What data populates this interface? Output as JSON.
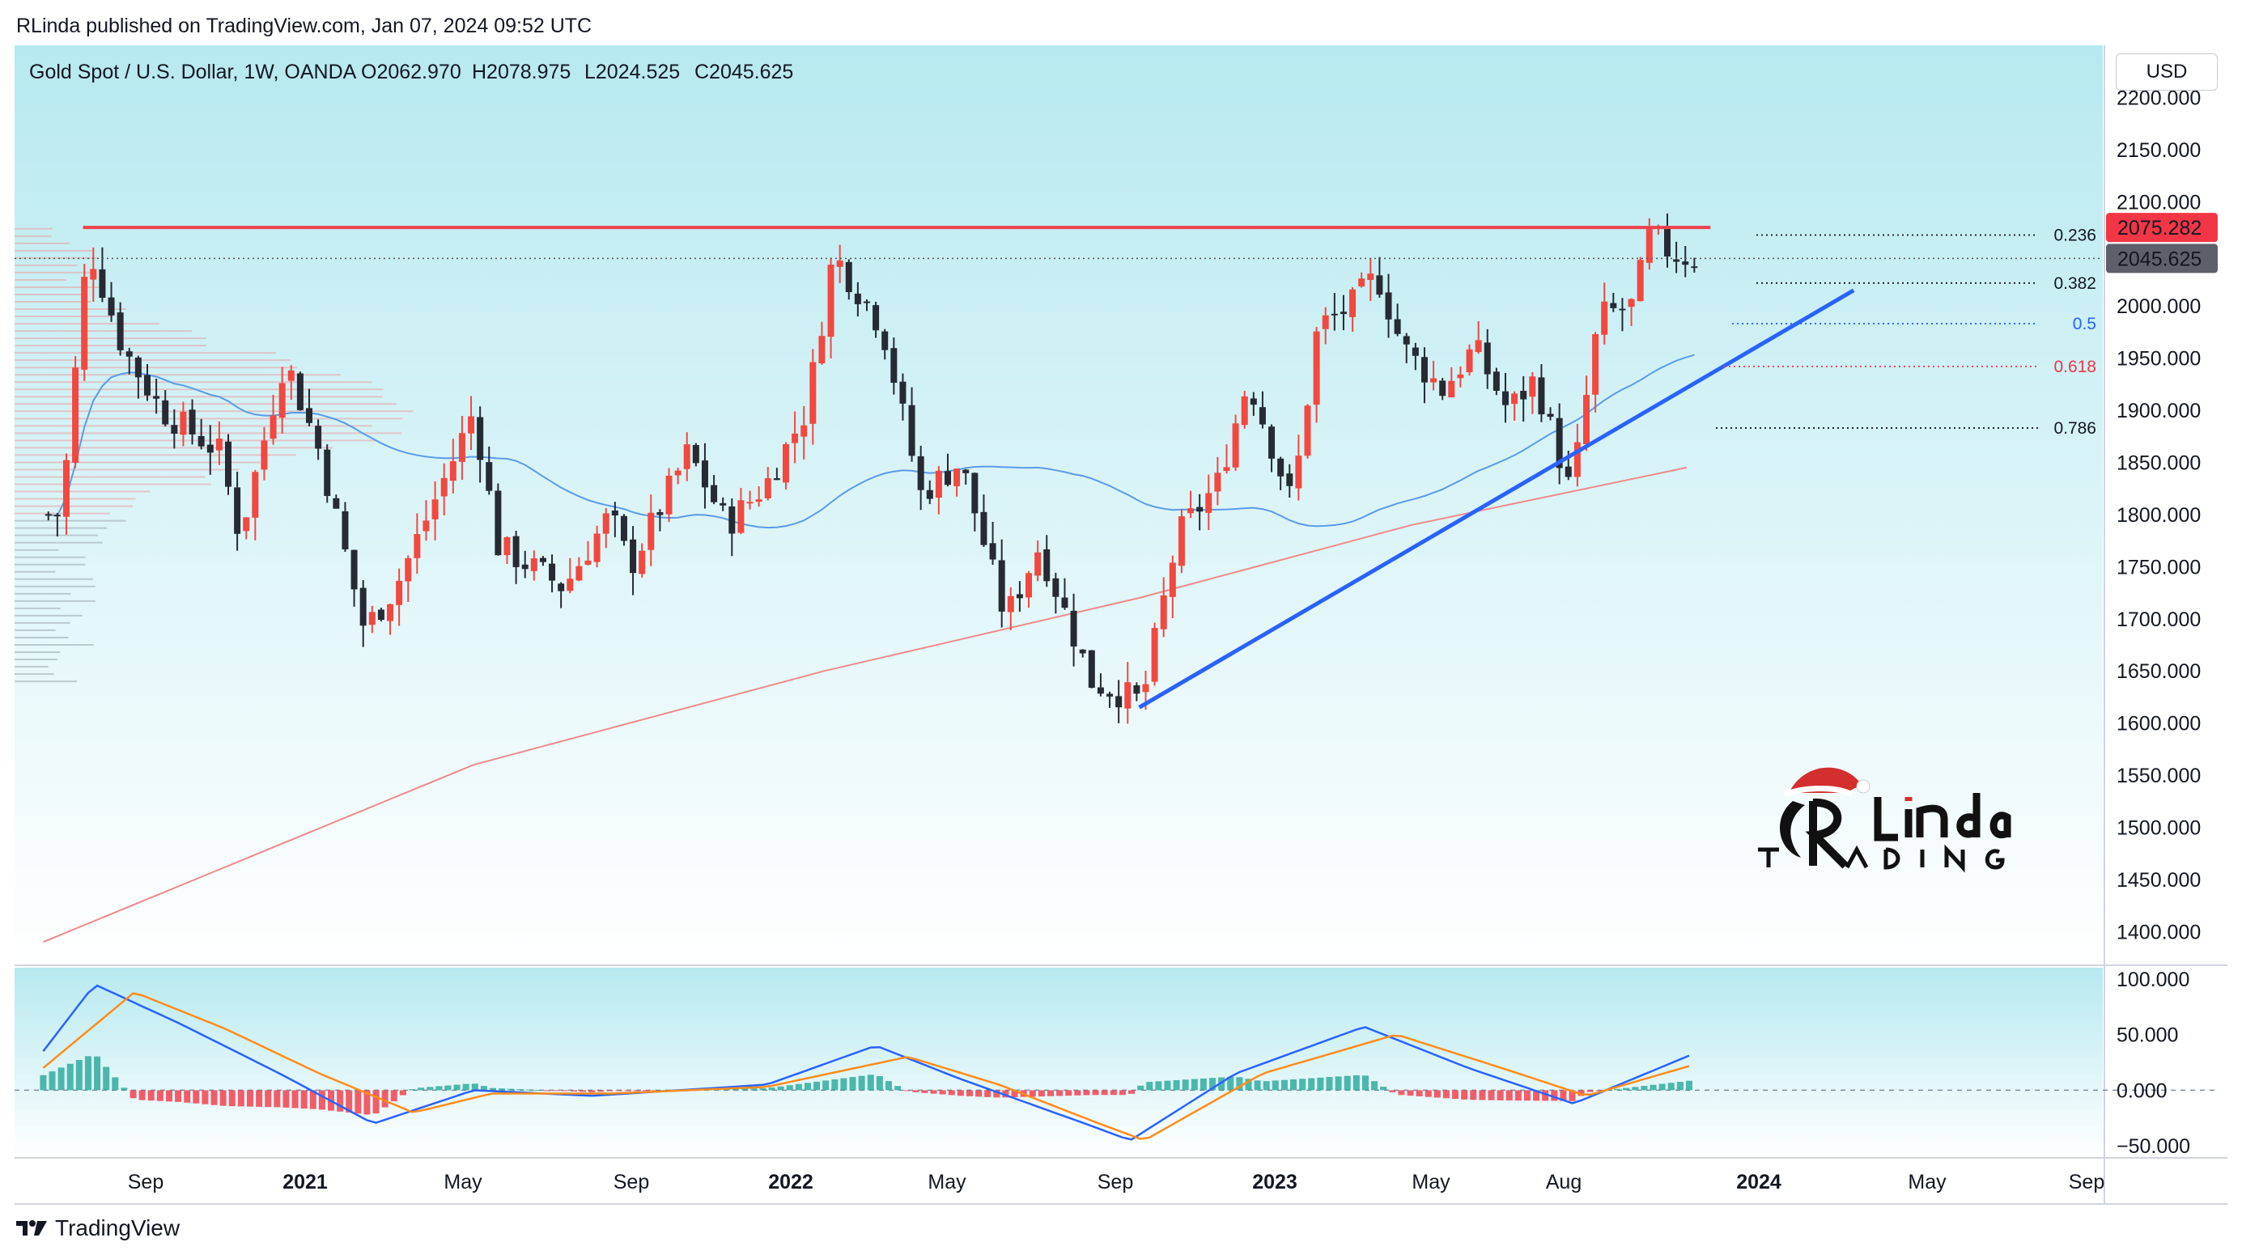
{
  "publisher": "RLinda published on TradingView.com, Jan 07, 2024 09:52 UTC",
  "footer_brand": "TradingView",
  "currency_button": "USD",
  "colors": {
    "background_top": "#b6e9f0",
    "background_bottom": "#ffffff",
    "up": "#f2483f",
    "down": "#262a33",
    "resistance": "#f0404d",
    "trendline": "#2962ff",
    "ma_fast": "#5a9be8",
    "ma_slow": "#ee8a8a",
    "macd": "#2962ff",
    "signal": "#ff8c1a",
    "hist_pos": "#26a69a",
    "hist_neg": "#f23645"
  },
  "chart_data": [
    {
      "type": "candlestick",
      "title": "Gold Spot / U.S. Dollar, 1W, OANDA",
      "ohlc_label": {
        "o": "O2062.970",
        "h": "H2078.975",
        "l": "L2024.525",
        "c": "C2045.625"
      },
      "x_tick_labels": [
        "Sep",
        "2021",
        "May",
        "Sep",
        "2022",
        "May",
        "Sep",
        "2023",
        "May",
        "Aug",
        "2024",
        "May",
        "Sep"
      ],
      "y_tick_labels": [
        "2200.000",
        "2150.000",
        "2100.000",
        "2000.000",
        "1950.000",
        "1900.000",
        "1850.000",
        "1800.000",
        "1750.000",
        "1700.000",
        "1650.000",
        "1600.000",
        "1550.000",
        "1500.000",
        "1450.000",
        "1400.000"
      ],
      "ylim": [
        1370,
        2250
      ],
      "price_tags": [
        {
          "value": 2075.282,
          "label": "2075.282",
          "color": "#f23645"
        },
        {
          "value": 2045.625,
          "label": "2045.625",
          "color": "#5d606b"
        }
      ],
      "resistance": {
        "value": 2075.282,
        "from": "2020-08-01",
        "to": "2024-01-07"
      },
      "trendline": {
        "from": {
          "date": "2022-11-01",
          "value": 1615
        },
        "to": {
          "date": "2024-05-10",
          "value": 2015
        }
      },
      "fib_levels": [
        {
          "label": "0.236",
          "value": 2068
        },
        {
          "label": "0.382",
          "value": 2022
        },
        {
          "label": "0.5",
          "value": 1983
        },
        {
          "label": "0.618",
          "value": 1942
        },
        {
          "label": "0.786",
          "value": 1883
        }
      ],
      "key_prices": [
        {
          "date": "2020-07-15",
          "close": 1800
        },
        {
          "date": "2020-08-05",
          "close": 2060
        },
        {
          "date": "2020-09-01",
          "close": 1960
        },
        {
          "date": "2020-10-01",
          "close": 1900
        },
        {
          "date": "2020-11-15",
          "close": 1860
        },
        {
          "date": "2020-12-01",
          "close": 1780
        },
        {
          "date": "2021-01-05",
          "close": 1950
        },
        {
          "date": "2021-02-01",
          "close": 1860
        },
        {
          "date": "2021-03-08",
          "close": 1690
        },
        {
          "date": "2021-04-01",
          "close": 1730
        },
        {
          "date": "2021-05-15",
          "close": 1850
        },
        {
          "date": "2021-06-01",
          "close": 1900
        },
        {
          "date": "2021-06-20",
          "close": 1770
        },
        {
          "date": "2021-08-10",
          "close": 1730
        },
        {
          "date": "2021-09-15",
          "close": 1800
        },
        {
          "date": "2021-10-01",
          "close": 1750
        },
        {
          "date": "2021-11-15",
          "close": 1860
        },
        {
          "date": "2021-12-15",
          "close": 1790
        },
        {
          "date": "2022-01-15",
          "close": 1830
        },
        {
          "date": "2022-02-15",
          "close": 1900
        },
        {
          "date": "2022-03-08",
          "close": 2050
        },
        {
          "date": "2022-04-15",
          "close": 1980
        },
        {
          "date": "2022-05-15",
          "close": 1820
        },
        {
          "date": "2022-06-15",
          "close": 1850
        },
        {
          "date": "2022-07-20",
          "close": 1700
        },
        {
          "date": "2022-08-15",
          "close": 1770
        },
        {
          "date": "2022-09-25",
          "close": 1640
        },
        {
          "date": "2022-11-03",
          "close": 1620
        },
        {
          "date": "2022-12-01",
          "close": 1780
        },
        {
          "date": "2023-01-01",
          "close": 1830
        },
        {
          "date": "2023-01-25",
          "close": 1930
        },
        {
          "date": "2023-02-28",
          "close": 1810
        },
        {
          "date": "2023-03-20",
          "close": 1980
        },
        {
          "date": "2023-04-15",
          "close": 2000
        },
        {
          "date": "2023-05-05",
          "close": 2030
        },
        {
          "date": "2023-05-25",
          "close": 1960
        },
        {
          "date": "2023-06-25",
          "close": 1920
        },
        {
          "date": "2023-07-20",
          "close": 1960
        },
        {
          "date": "2023-08-15",
          "close": 1900
        },
        {
          "date": "2023-09-05",
          "close": 1930
        },
        {
          "date": "2023-10-03",
          "close": 1820
        },
        {
          "date": "2023-10-25",
          "close": 1990
        },
        {
          "date": "2023-11-20",
          "close": 2000
        },
        {
          "date": "2023-12-04",
          "close": 2070
        },
        {
          "date": "2023-12-20",
          "close": 2050
        },
        {
          "date": "2024-01-07",
          "close": 2045.625
        }
      ]
    },
    {
      "type": "line",
      "title": "MACD",
      "y_tick_labels": [
        "100.000",
        "50.000",
        "0.000",
        "−50.000"
      ],
      "ylim": [
        -60,
        110
      ],
      "series": [
        {
          "key": "macd",
          "points": [
            {
              "date": "2020-07-01",
              "value": 35
            },
            {
              "date": "2020-08-10",
              "value": 95
            },
            {
              "date": "2020-10-15",
              "value": 60
            },
            {
              "date": "2021-01-01",
              "value": 15
            },
            {
              "date": "2021-03-15",
              "value": -30
            },
            {
              "date": "2021-06-01",
              "value": 0
            },
            {
              "date": "2021-09-01",
              "value": -5
            },
            {
              "date": "2022-01-15",
              "value": 5
            },
            {
              "date": "2022-04-10",
              "value": 40
            },
            {
              "date": "2022-06-15",
              "value": 10
            },
            {
              "date": "2022-09-20",
              "value": -30
            },
            {
              "date": "2022-10-25",
              "value": -45
            },
            {
              "date": "2023-01-15",
              "value": 15
            },
            {
              "date": "2023-04-25",
              "value": 57
            },
            {
              "date": "2023-07-15",
              "value": 20
            },
            {
              "date": "2023-10-05",
              "value": -12
            },
            {
              "date": "2024-01-07",
              "value": 33
            }
          ]
        },
        {
          "key": "signal",
          "points": [
            {
              "date": "2020-07-01",
              "value": 20
            },
            {
              "date": "2020-09-10",
              "value": 88
            },
            {
              "date": "2020-11-20",
              "value": 55
            },
            {
              "date": "2021-02-01",
              "value": 15
            },
            {
              "date": "2021-04-15",
              "value": -20
            },
            {
              "date": "2021-06-15",
              "value": -3
            },
            {
              "date": "2021-09-15",
              "value": -3
            },
            {
              "date": "2022-01-15",
              "value": 3
            },
            {
              "date": "2022-05-05",
              "value": 30
            },
            {
              "date": "2022-07-15",
              "value": 5
            },
            {
              "date": "2022-10-01",
              "value": -30
            },
            {
              "date": "2022-11-05",
              "value": -45
            },
            {
              "date": "2023-02-05",
              "value": 15
            },
            {
              "date": "2023-05-20",
              "value": 50
            },
            {
              "date": "2023-08-10",
              "value": 20
            },
            {
              "date": "2023-10-15",
              "value": -5
            },
            {
              "date": "2024-01-07",
              "value": 23
            }
          ]
        }
      ]
    }
  ]
}
